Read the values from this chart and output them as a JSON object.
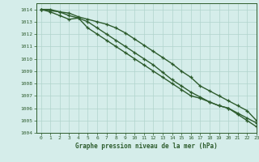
{
  "xlabel": "Graphe pression niveau de la mer (hPa)",
  "bg_color": "#d5edea",
  "grid_color": "#b0d4cc",
  "line_color": "#2d5c2d",
  "ylim": [
    1004,
    1014.5
  ],
  "xlim": [
    -0.5,
    23
  ],
  "yticks": [
    1004,
    1005,
    1006,
    1007,
    1008,
    1009,
    1010,
    1011,
    1012,
    1013,
    1014
  ],
  "xticks": [
    0,
    1,
    2,
    3,
    4,
    5,
    6,
    7,
    8,
    9,
    10,
    11,
    12,
    13,
    14,
    15,
    16,
    17,
    18,
    19,
    20,
    21,
    22,
    23
  ],
  "series": [
    [
      1014.0,
      1014.0,
      1013.8,
      1013.5,
      1013.3,
      1013.0,
      1012.5,
      1012.0,
      1011.5,
      1011.0,
      1010.5,
      1010.0,
      1009.5,
      1008.9,
      1008.3,
      1007.8,
      1007.3,
      1006.9,
      1006.5,
      1006.2,
      1006.0,
      1005.6,
      1005.2,
      1004.8
    ],
    [
      1014.0,
      1013.8,
      1013.5,
      1013.2,
      1013.3,
      1012.5,
      1012.0,
      1011.5,
      1011.0,
      1010.5,
      1010.0,
      1009.5,
      1009.0,
      1008.5,
      1008.0,
      1007.5,
      1007.0,
      1006.8,
      1006.5,
      1006.2,
      1006.0,
      1005.5,
      1005.0,
      1004.5
    ],
    [
      1014.0,
      1013.9,
      1013.8,
      1013.7,
      1013.4,
      1013.2,
      1013.0,
      1012.8,
      1012.5,
      1012.1,
      1011.6,
      1011.1,
      1010.6,
      1010.1,
      1009.6,
      1009.0,
      1008.5,
      1007.8,
      1007.4,
      1007.0,
      1006.6,
      1006.2,
      1005.8,
      1005.0
    ]
  ]
}
